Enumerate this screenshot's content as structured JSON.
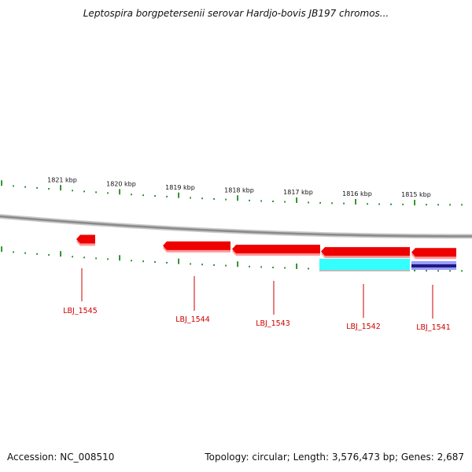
{
  "title": "Leptospira borgpetersenii serovar Hardjo-bovis JB197 chromos...",
  "accession": "Accession: NC_008510",
  "summary": "Topology: circular; Length: 3,576,473 bp; Genes: 2,687",
  "colors": {
    "backbone": "#8a8a8a",
    "tick": "#1f8a1f",
    "cds": "#ee0000",
    "cds_shadow": "#ff9999",
    "feature_cyan": "#33ffff",
    "feature_navy": "#1a1a80",
    "label": "#cc0000"
  },
  "scale_labels": [
    "1821 kbp",
    "1820 kbp",
    "1819 kbp",
    "1818 kbp",
    "1817 kbp",
    "1816 kbp",
    "1815 kbp"
  ],
  "genes": [
    {
      "name": "LBJ_1545"
    },
    {
      "name": "LBJ_1544"
    },
    {
      "name": "LBJ_1543"
    },
    {
      "name": "LBJ_1542"
    },
    {
      "name": "LBJ_1541"
    }
  ]
}
